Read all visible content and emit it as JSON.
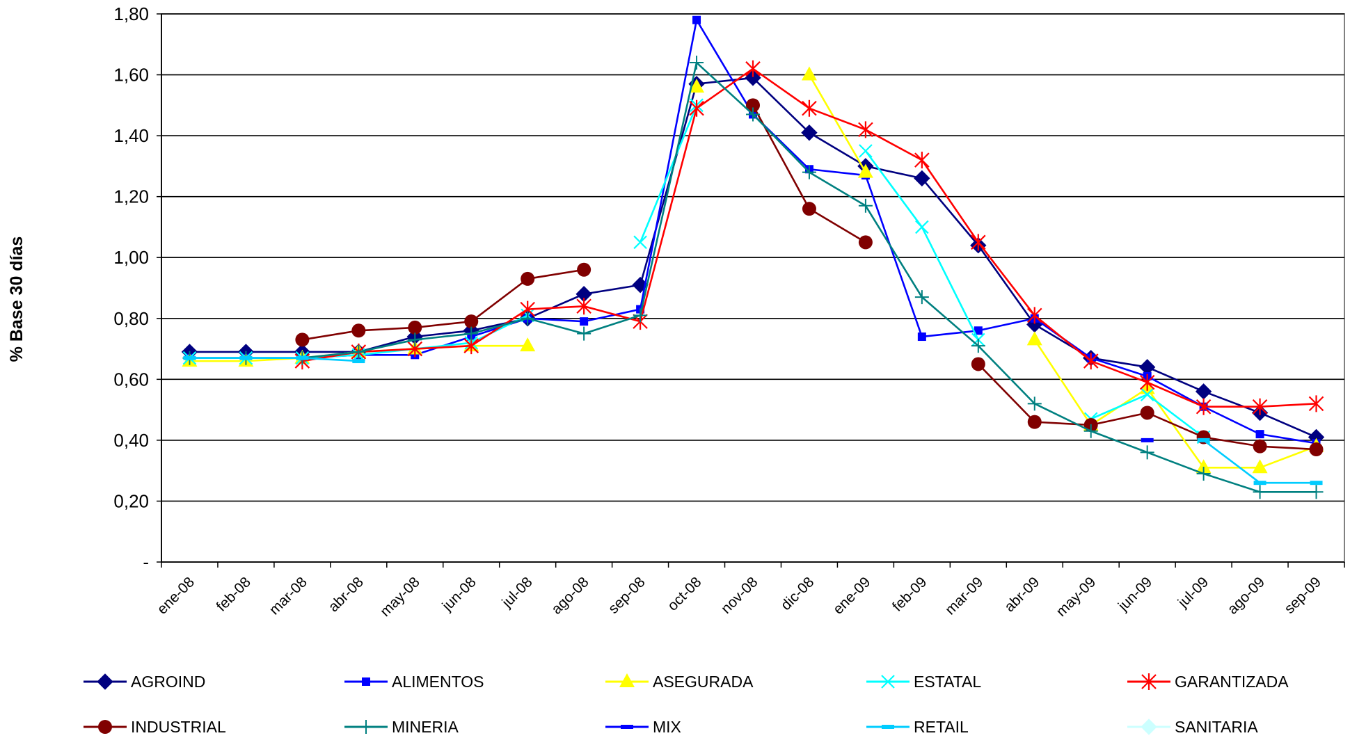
{
  "chart_data": {
    "type": "line",
    "ylabel": "% Base 30 días",
    "xlabel": "",
    "ylim": [
      0,
      1.8
    ],
    "yticks": [
      {
        "value": 0,
        "label": "-"
      },
      {
        "value": 0.2,
        "label": "0,20"
      },
      {
        "value": 0.4,
        "label": "0,40"
      },
      {
        "value": 0.6,
        "label": "0,60"
      },
      {
        "value": 0.8,
        "label": "0,80"
      },
      {
        "value": 1.0,
        "label": "1,00"
      },
      {
        "value": 1.2,
        "label": "1,20"
      },
      {
        "value": 1.4,
        "label": "1,40"
      },
      {
        "value": 1.6,
        "label": "1,60"
      },
      {
        "value": 1.8,
        "label": "1,80"
      }
    ],
    "grid": true,
    "legend_position": "bottom",
    "categories": [
      "ene-08",
      "feb-08",
      "mar-08",
      "abr-08",
      "may-08",
      "jun-08",
      "jul-08",
      "ago-08",
      "sep-08",
      "oct-08",
      "nov-08",
      "dic-08",
      "ene-09",
      "feb-09",
      "mar-09",
      "abr-09",
      "may-09",
      "jun-09",
      "jul-09",
      "ago-09",
      "sep-09"
    ],
    "series": [
      {
        "name": "AGROIND",
        "color": "#000080",
        "marker": "diamond",
        "values": [
          0.69,
          0.69,
          0.69,
          0.69,
          0.74,
          0.76,
          0.8,
          0.88,
          0.91,
          1.57,
          1.59,
          1.41,
          1.3,
          1.26,
          1.04,
          0.78,
          0.67,
          0.64,
          0.56,
          0.49,
          0.41
        ]
      },
      {
        "name": "ALIMENTOS",
        "color": "#0000FF",
        "marker": "square",
        "values": [
          0.67,
          0.67,
          0.67,
          0.68,
          0.68,
          0.74,
          0.8,
          0.79,
          0.83,
          1.78,
          1.47,
          1.29,
          1.27,
          0.74,
          0.76,
          0.8,
          0.67,
          0.61,
          0.51,
          0.42,
          0.39
        ]
      },
      {
        "name": "ASEGURADA",
        "color": "#FFFF00",
        "marker": "triangle",
        "values": [
          0.66,
          0.66,
          0.67,
          0.69,
          0.7,
          0.71,
          0.71,
          null,
          null,
          1.56,
          null,
          1.6,
          1.28,
          null,
          null,
          0.73,
          0.45,
          0.57,
          0.31,
          0.31,
          0.38
        ]
      },
      {
        "name": "ESTATAL",
        "color": "#00FFFF",
        "marker": "x",
        "values": [
          0.67,
          0.67,
          0.67,
          0.68,
          0.7,
          0.72,
          0.81,
          null,
          1.05,
          1.5,
          null,
          null,
          1.35,
          1.1,
          0.73,
          null,
          0.47,
          0.55,
          0.41,
          null,
          null
        ]
      },
      {
        "name": "GARANTIZADA",
        "color": "#FF0000",
        "marker": "star",
        "values": [
          null,
          null,
          0.66,
          0.69,
          0.7,
          0.71,
          0.83,
          0.84,
          0.79,
          1.49,
          1.62,
          1.49,
          1.42,
          1.32,
          1.05,
          0.81,
          0.66,
          0.59,
          0.51,
          0.51,
          0.52
        ]
      },
      {
        "name": "INDUSTRIAL",
        "color": "#800000",
        "marker": "circle",
        "values": [
          null,
          null,
          0.73,
          0.76,
          0.77,
          0.79,
          0.93,
          0.96,
          null,
          null,
          1.5,
          1.16,
          1.05,
          null,
          0.65,
          0.46,
          0.45,
          0.49,
          0.41,
          0.38,
          0.37
        ]
      },
      {
        "name": "MINERIA",
        "color": "#008080",
        "marker": "plus",
        "values": [
          0.67,
          0.67,
          0.67,
          0.69,
          0.73,
          0.75,
          0.8,
          0.75,
          0.81,
          1.64,
          1.47,
          1.28,
          1.17,
          0.87,
          0.71,
          0.52,
          0.43,
          0.36,
          0.29,
          0.23,
          0.23
        ]
      },
      {
        "name": "MIX",
        "color": "#0000FF",
        "marker": "dash",
        "values": [
          null,
          null,
          null,
          null,
          null,
          null,
          null,
          null,
          null,
          null,
          null,
          null,
          null,
          null,
          null,
          null,
          null,
          0.4,
          null,
          null,
          null
        ]
      },
      {
        "name": "RETAIL",
        "color": "#00CCFF",
        "marker": "dash",
        "values": [
          0.67,
          0.67,
          0.67,
          0.66,
          null,
          null,
          null,
          null,
          null,
          null,
          null,
          null,
          null,
          null,
          null,
          null,
          null,
          null,
          0.4,
          0.26,
          0.26
        ]
      },
      {
        "name": "SANITARIA",
        "color": "#CCFFFF",
        "marker": "diamond",
        "values": [
          null,
          null,
          null,
          null,
          null,
          null,
          null,
          null,
          null,
          null,
          null,
          null,
          null,
          null,
          null,
          null,
          null,
          null,
          null,
          null,
          null
        ]
      }
    ]
  }
}
